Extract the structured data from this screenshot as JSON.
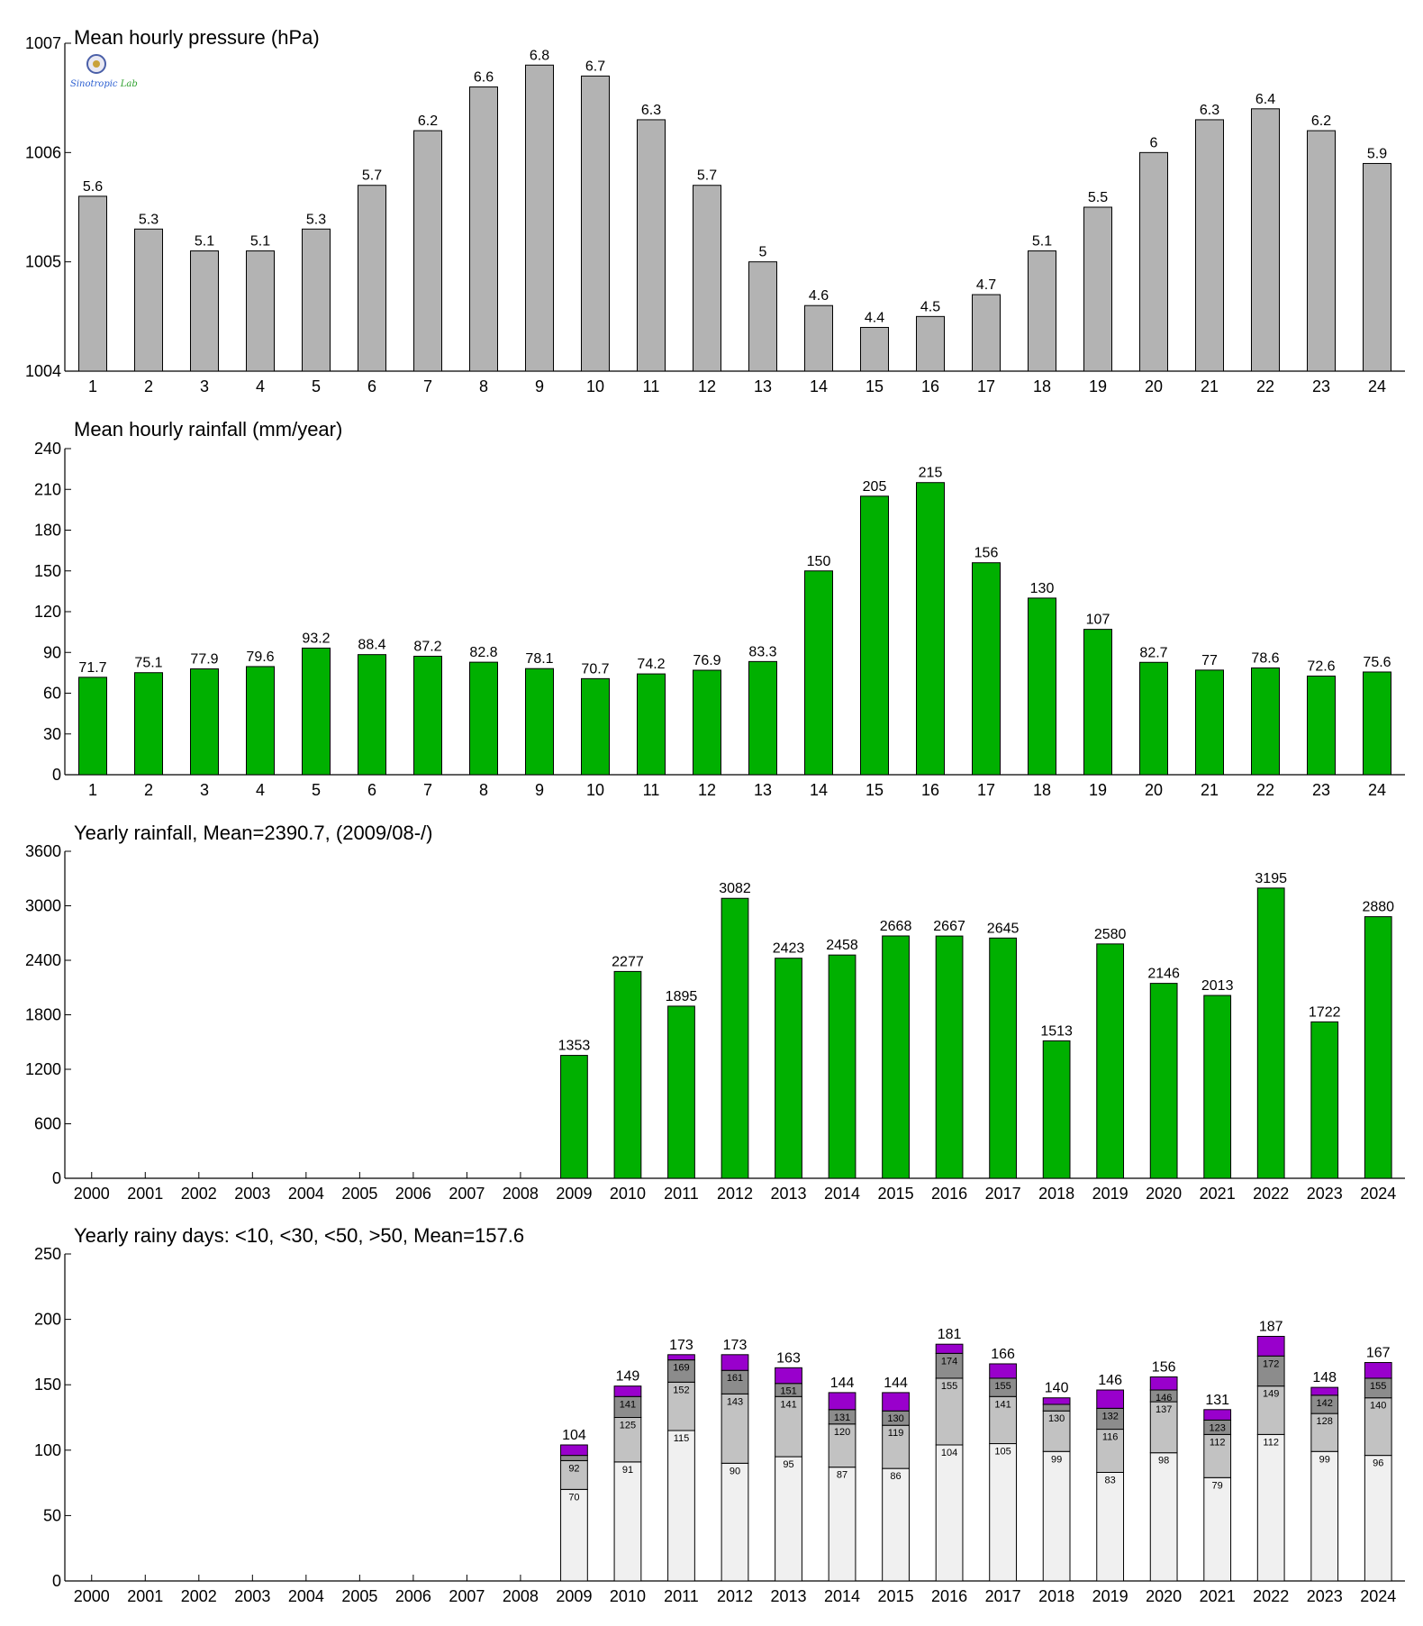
{
  "colors": {
    "pressure_bar": "#b3b3b3",
    "rain_bar": "#00b000",
    "days_lt10": "#f0f0f0",
    "days_lt30": "#c2c2c2",
    "days_lt50": "#8c8c8c",
    "days_gt50": "#9900cc",
    "axis": "#000000"
  },
  "logo": {
    "emblem_icon": "seal-icon",
    "text_a": "Sinotropic",
    "text_b": "Lab"
  },
  "chart_data": [
    {
      "type": "bar",
      "title": "Mean hourly pressure (hPa)",
      "categories": [
        "1",
        "2",
        "3",
        "4",
        "5",
        "6",
        "7",
        "8",
        "9",
        "10",
        "11",
        "12",
        "13",
        "14",
        "15",
        "16",
        "17",
        "18",
        "19",
        "20",
        "21",
        "22",
        "23",
        "24"
      ],
      "values": [
        1005.6,
        1005.3,
        1005.1,
        1005.1,
        1005.3,
        1005.7,
        1006.2,
        1006.6,
        1006.8,
        1006.7,
        1006.3,
        1005.7,
        1005.0,
        1004.6,
        1004.4,
        1004.5,
        1004.7,
        1005.1,
        1005.5,
        1006.0,
        1006.3,
        1006.4,
        1006.2,
        1005.9
      ],
      "data_labels": [
        "5.6",
        "5.3",
        "5.1",
        "5.1",
        "5.3",
        "5.7",
        "6.2",
        "6.6",
        "6.8",
        "6.7",
        "6.3",
        "5.7",
        "5",
        "4.6",
        "4.4",
        "4.5",
        "4.7",
        "5.1",
        "5.5",
        "6",
        "6.3",
        "6.4",
        "6.2",
        "5.9"
      ],
      "ylim": [
        1004,
        1007
      ],
      "yticks": [
        1004,
        1005,
        1006,
        1007
      ],
      "grid": false
    },
    {
      "type": "bar",
      "title": "Mean hourly rainfall (mm/year)",
      "categories": [
        "1",
        "2",
        "3",
        "4",
        "5",
        "6",
        "7",
        "8",
        "9",
        "10",
        "11",
        "12",
        "13",
        "14",
        "15",
        "16",
        "17",
        "18",
        "19",
        "20",
        "21",
        "22",
        "23",
        "24"
      ],
      "values": [
        71.7,
        75.1,
        77.9,
        79.6,
        93.2,
        88.4,
        87.2,
        82.8,
        78.1,
        70.7,
        74.2,
        76.9,
        83.3,
        150,
        205,
        215,
        156,
        130,
        107,
        82.7,
        77,
        78.6,
        72.6,
        75.6
      ],
      "data_labels": [
        "71.7",
        "75.1",
        "77.9",
        "79.6",
        "93.2",
        "88.4",
        "87.2",
        "82.8",
        "78.1",
        "70.7",
        "74.2",
        "76.9",
        "83.3",
        "150",
        "205",
        "215",
        "156",
        "130",
        "107",
        "82.7",
        "77",
        "78.6",
        "72.6",
        "75.6"
      ],
      "ylim": [
        0,
        240
      ],
      "yticks": [
        0,
        30,
        60,
        90,
        120,
        150,
        180,
        210,
        240
      ],
      "grid": false
    },
    {
      "type": "bar",
      "title": "Yearly rainfall, Mean=2390.7, (2009/08-/)",
      "categories": [
        "2000",
        "2001",
        "2002",
        "2003",
        "2004",
        "2005",
        "2006",
        "2007",
        "2008",
        "2009",
        "2010",
        "2011",
        "2012",
        "2013",
        "2014",
        "2015",
        "2016",
        "2017",
        "2018",
        "2019",
        "2020",
        "2021",
        "2022",
        "2023",
        "2024"
      ],
      "values": [
        null,
        null,
        null,
        null,
        null,
        null,
        null,
        null,
        null,
        1353,
        2277,
        1895,
        3082,
        2423,
        2458,
        2668,
        2667,
        2645,
        1513,
        2580,
        2146,
        2013,
        3195,
        1722,
        2880
      ],
      "ylim": [
        0,
        3600
      ],
      "yticks": [
        0,
        600,
        1200,
        1800,
        2400,
        3000,
        3600
      ],
      "grid": false
    },
    {
      "type": "bar",
      "stacked": true,
      "title": "Yearly rainy days: <10, <30, <50, >50, Mean=157.6",
      "categories": [
        "2000",
        "2001",
        "2002",
        "2003",
        "2004",
        "2005",
        "2006",
        "2007",
        "2008",
        "2009",
        "2010",
        "2011",
        "2012",
        "2013",
        "2014",
        "2015",
        "2016",
        "2017",
        "2018",
        "2019",
        "2020",
        "2021",
        "2022",
        "2023",
        "2024"
      ],
      "cumulative": {
        "lt10": [
          null,
          null,
          null,
          null,
          null,
          null,
          null,
          null,
          null,
          70,
          91,
          115,
          90,
          95,
          87,
          86,
          104,
          105,
          99,
          83,
          98,
          79,
          112,
          99,
          96
        ],
        "lt30": [
          null,
          null,
          null,
          null,
          null,
          null,
          null,
          null,
          null,
          92,
          125,
          152,
          143,
          141,
          120,
          119,
          155,
          141,
          130,
          116,
          137,
          112,
          149,
          128,
          140
        ],
        "lt50": [
          null,
          null,
          null,
          null,
          null,
          null,
          null,
          null,
          null,
          96,
          141,
          169,
          161,
          151,
          131,
          130,
          174,
          155,
          135,
          132,
          146,
          123,
          172,
          142,
          155
        ],
        "total": [
          null,
          null,
          null,
          null,
          null,
          null,
          null,
          null,
          null,
          104,
          149,
          173,
          173,
          163,
          144,
          144,
          181,
          166,
          140,
          146,
          156,
          131,
          187,
          148,
          167
        ]
      },
      "segment_labels": {
        "lt10": [
          "",
          "",
          "",
          "",
          "",
          "",
          "",
          "",
          "",
          "70",
          "91",
          "115",
          "90",
          "95",
          "87",
          "86",
          "104",
          "105",
          "99",
          "83",
          "98",
          "79",
          "112",
          "99",
          "96"
        ],
        "lt30": [
          "",
          "",
          "",
          "",
          "",
          "",
          "",
          "",
          "",
          "92",
          "125",
          "152",
          "143",
          "141",
          "120",
          "119",
          "155",
          "141",
          "130",
          "116",
          "137",
          "112",
          "149",
          "128",
          "140"
        ],
        "lt50": [
          "",
          "",
          "",
          "",
          "",
          "",
          "",
          "",
          "",
          "",
          "141",
          "169",
          "161",
          "151",
          "131",
          "130",
          "174",
          "155",
          "",
          "132",
          "146",
          "123",
          "172",
          "142",
          "155"
        ]
      },
      "ylim": [
        0,
        250
      ],
      "yticks": [
        0,
        50,
        100,
        150,
        200,
        250
      ],
      "grid": false
    }
  ]
}
